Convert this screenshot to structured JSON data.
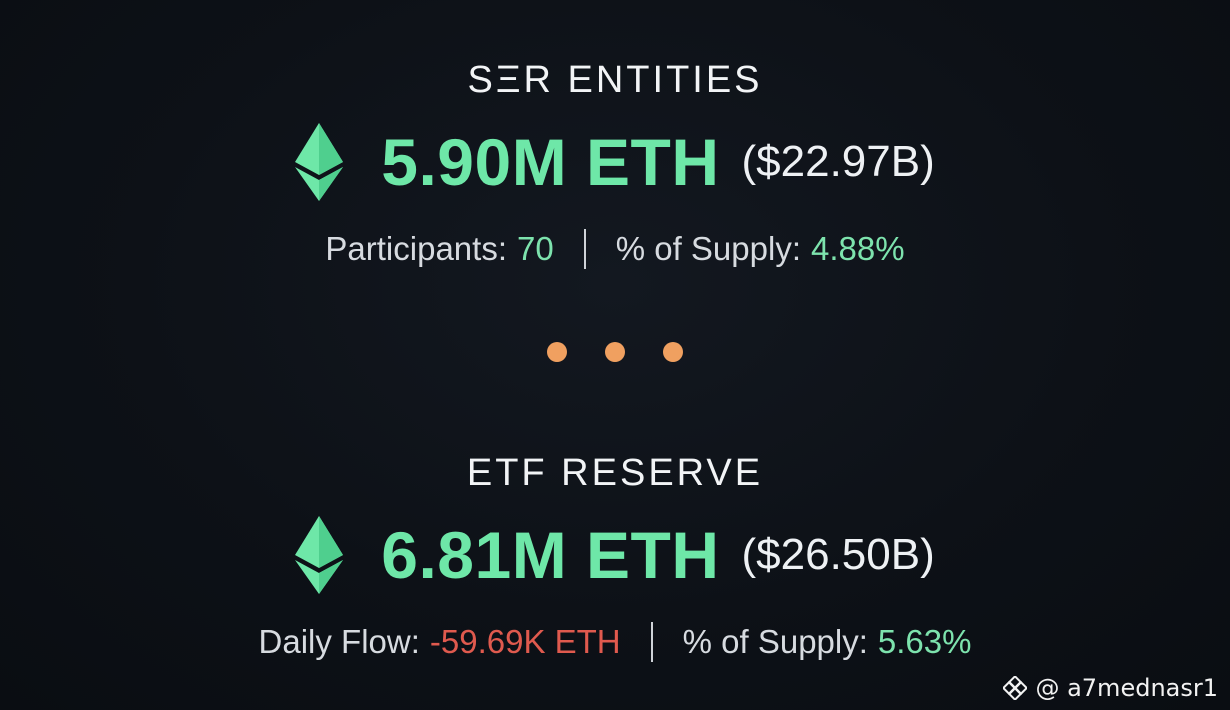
{
  "colors": {
    "accent_green": "#6ee7a8",
    "negative_red": "#e05a4e",
    "dot_orange": "#f0a060"
  },
  "top": {
    "title": "SΞR ENTITIES",
    "icon": "ethereum-icon",
    "amount": "5.90M ETH",
    "usd": "($22.97B)",
    "stat1_label": "Participants:",
    "stat1_value": "70",
    "stat2_label": "% of Supply:",
    "stat2_value": "4.88%"
  },
  "bottom": {
    "title": "ETF RESERVE",
    "icon": "ethereum-icon",
    "amount": "6.81M ETH",
    "usd": "($26.50B)",
    "stat1_label": "Daily Flow:",
    "stat1_value": "-59.69K ETH",
    "stat2_label": "% of Supply:",
    "stat2_value": "5.63%"
  },
  "separator_icon": "ellipsis-dots",
  "watermark": {
    "icon": "binance-icon",
    "text": "@ a7mednasr1"
  }
}
